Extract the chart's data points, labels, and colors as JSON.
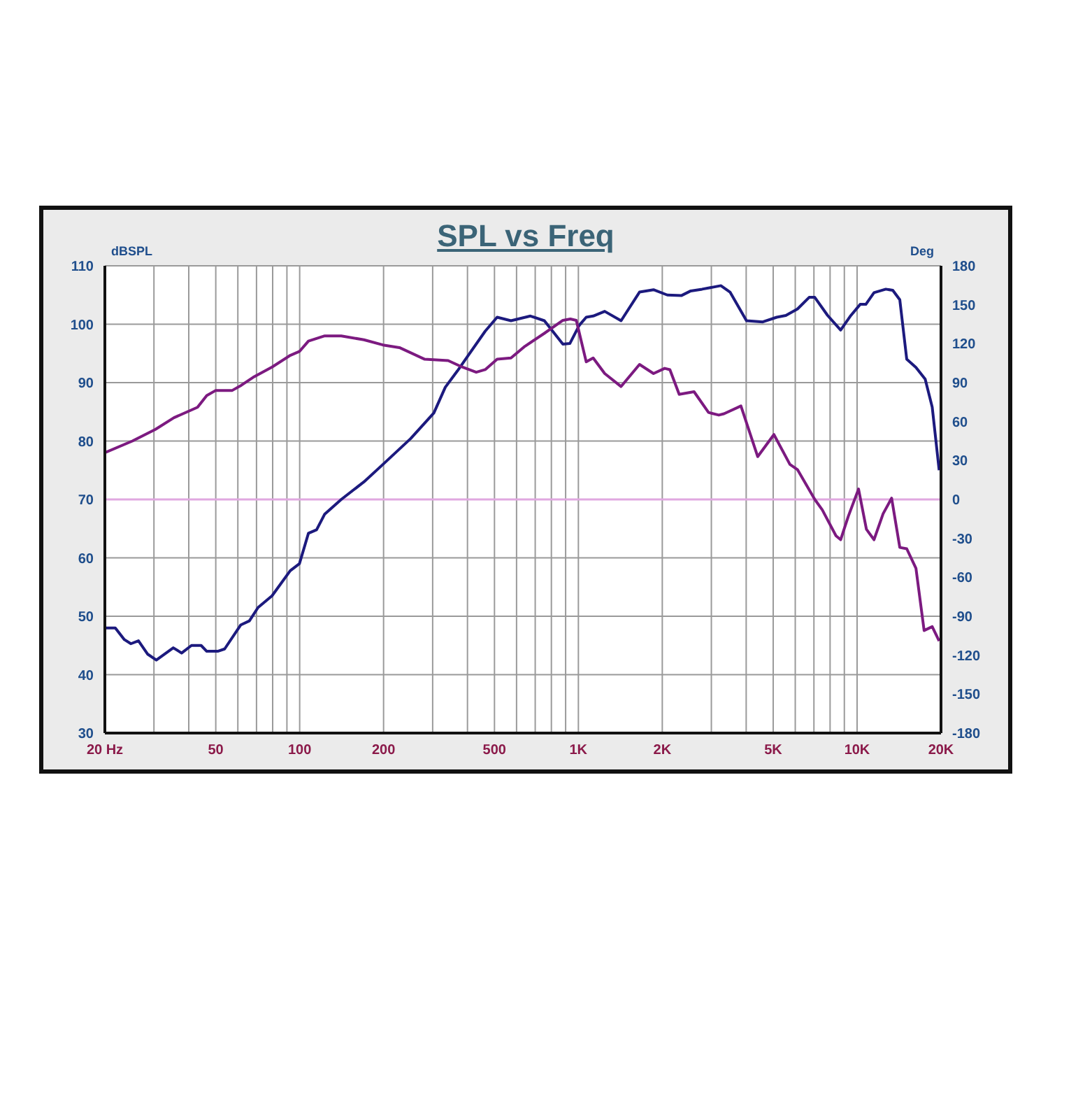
{
  "chart_data": {
    "type": "line",
    "title": "SPL vs Freq",
    "ylabel": "dBSPL",
    "y2label": "Deg",
    "log": "x",
    "grid": true,
    "marker": "none",
    "line_style": "solid",
    "xlim": [
      20,
      20000
    ],
    "xticks": [
      {
        "value": 20,
        "label": "20 Hz"
      },
      {
        "value": 30,
        "label": null
      },
      {
        "value": 40,
        "label": null
      },
      {
        "value": 50,
        "label": "50"
      },
      {
        "value": 60,
        "label": null
      },
      {
        "value": 70,
        "label": null
      },
      {
        "value": 80,
        "label": null
      },
      {
        "value": 90,
        "label": null
      },
      {
        "value": 100,
        "label": "100"
      },
      {
        "value": 200,
        "label": "200"
      },
      {
        "value": 300,
        "label": null
      },
      {
        "value": 400,
        "label": null
      },
      {
        "value": 500,
        "label": "500"
      },
      {
        "value": 600,
        "label": null
      },
      {
        "value": 700,
        "label": null
      },
      {
        "value": 800,
        "label": null
      },
      {
        "value": 900,
        "label": null
      },
      {
        "value": 1000,
        "label": "1K"
      },
      {
        "value": 2000,
        "label": "2K"
      },
      {
        "value": 3000,
        "label": null
      },
      {
        "value": 4000,
        "label": null
      },
      {
        "value": 5000,
        "label": "5K"
      },
      {
        "value": 6000,
        "label": null
      },
      {
        "value": 7000,
        "label": null
      },
      {
        "value": 8000,
        "label": null
      },
      {
        "value": 9000,
        "label": null
      },
      {
        "value": 10000,
        "label": "10K"
      },
      {
        "value": 20000,
        "label": "20K"
      }
    ],
    "ylim": [
      30,
      110
    ],
    "yticks": [
      30,
      40,
      50,
      60,
      70,
      80,
      90,
      100,
      110
    ],
    "y2lim": [
      -180,
      180
    ],
    "y2ticks": [
      -180,
      -150,
      -120,
      -90,
      -60,
      -30,
      0,
      30,
      60,
      90,
      120,
      150,
      180
    ],
    "ref_lines": [
      {
        "axis": "y2",
        "value": 0,
        "color": "#e0a8e0"
      }
    ],
    "series": [
      {
        "color": "#1c1a7e",
        "x": [
          20,
          21.8,
          23.5,
          24.8,
          26.4,
          28.5,
          30.6,
          35.2,
          37.7,
          40.9,
          44.3,
          46.4,
          50.8,
          53.8,
          61.4,
          66,
          70.9,
          79.6,
          92.5,
          99.8,
          107.5,
          115,
          123,
          141,
          170,
          199,
          250,
          303,
          333,
          368,
          463,
          511,
          573,
          673,
          755,
          880,
          932,
          1007,
          1067,
          1130,
          1243,
          1423,
          1657,
          1860,
          2085,
          2340,
          2530,
          2780,
          3245,
          3500,
          4010,
          4590,
          5150,
          5550,
          6110,
          6730,
          7050,
          7840,
          8730,
          9500,
          10260,
          10750,
          11500,
          12680,
          13430,
          14230,
          15070,
          16260,
          17550,
          18600,
          19700
        ],
        "values": [
          48,
          48,
          46,
          45.3,
          45.8,
          43.5,
          42.5,
          44.6,
          43.7,
          45,
          45,
          44,
          44,
          44.4,
          48.5,
          49.2,
          51.5,
          53.5,
          57.8,
          59,
          64.2,
          64.8,
          67.5,
          70,
          73,
          76,
          80.4,
          84.8,
          89.2,
          92,
          98.8,
          101.2,
          100.6,
          101.4,
          100.6,
          96.6,
          96.7,
          99.8,
          101.2,
          101.4,
          102.2,
          100.6,
          105.5,
          105.9,
          105,
          104.9,
          105.7,
          106,
          106.6,
          105.5,
          100.6,
          100.4,
          101.2,
          101.5,
          102.6,
          104.6,
          104.6,
          101.5,
          99,
          101.5,
          103.4,
          103.4,
          105.4,
          106,
          105.8,
          104.2,
          94,
          92.6,
          90.6,
          85.8,
          75
        ]
      },
      {
        "color": "#7c1a80",
        "axis": "y2",
        "x": [
          20,
          25.1,
          30.4,
          35.4,
          43,
          46.4,
          50,
          57.3,
          61.8,
          68,
          79.6,
          92.5,
          99.8,
          107.5,
          123,
          141,
          170,
          199,
          228,
          281,
          341,
          383,
          430,
          463,
          511,
          573,
          643,
          755,
          880,
          936,
          983,
          1067,
          1130,
          1243,
          1423,
          1657,
          1860,
          2040,
          2130,
          2300,
          2600,
          2930,
          3190,
          3330,
          3830,
          4400,
          5030,
          5740,
          6110,
          7050,
          7500,
          8400,
          8730,
          9300,
          10120,
          10800,
          11500,
          12400,
          13300,
          14230,
          15070,
          16260,
          17400,
          18600,
          19700
        ],
        "values": [
          36,
          45,
          54,
          63,
          71,
          80,
          84,
          84,
          88,
          94,
          102,
          111,
          114,
          122,
          126,
          126,
          123,
          119,
          117,
          108,
          107,
          102,
          98,
          100,
          108,
          109,
          118,
          128,
          138,
          139,
          138,
          106,
          109,
          97,
          87,
          104,
          97,
          101,
          100,
          81,
          83,
          67,
          65,
          66,
          72,
          33,
          50,
          27,
          23,
          0,
          -8,
          -28,
          -31,
          -13,
          8,
          -23,
          -31,
          -11,
          1,
          -37,
          -38,
          -53,
          -101,
          -98,
          -109
        ]
      }
    ]
  }
}
